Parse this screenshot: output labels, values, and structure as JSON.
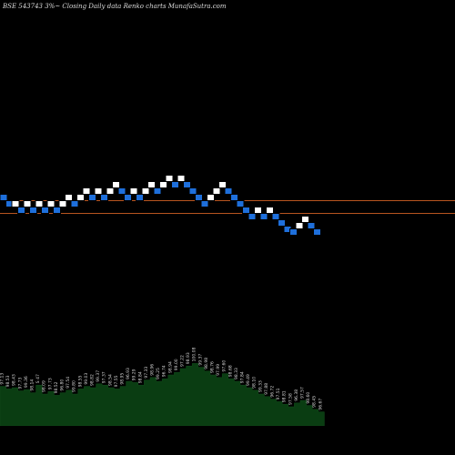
{
  "chart_data": {
    "type": "renko",
    "title": "BSE 543743 3%~ Closing Daily data Renko charts MunafaSutra.com",
    "colors": {
      "background": "#000000",
      "up_brick": "#ffffff",
      "down_brick": "#1e6fdb",
      "brick_border": "#000000",
      "reference_line": "#b8551f",
      "volume_fill": "#0a3d12",
      "volume_label": "#d8d8d8"
    },
    "reference_lines": [
      220.5,
      234.5
    ],
    "bricks": [
      {
        "i": 0,
        "level": 217,
        "dir": "down"
      },
      {
        "i": 1,
        "level": 224,
        "dir": "down"
      },
      {
        "i": 2,
        "level": 224,
        "dir": "up"
      },
      {
        "i": 3,
        "level": 231,
        "dir": "down"
      },
      {
        "i": 4,
        "level": 224,
        "dir": "up"
      },
      {
        "i": 5,
        "level": 231,
        "dir": "down"
      },
      {
        "i": 6,
        "level": 224,
        "dir": "up"
      },
      {
        "i": 7,
        "level": 231,
        "dir": "down"
      },
      {
        "i": 8,
        "level": 224,
        "dir": "up"
      },
      {
        "i": 9,
        "level": 231,
        "dir": "down"
      },
      {
        "i": 10,
        "level": 224,
        "dir": "up"
      },
      {
        "i": 11,
        "level": 217,
        "dir": "up"
      },
      {
        "i": 12,
        "level": 224,
        "dir": "down"
      },
      {
        "i": 13,
        "level": 217,
        "dir": "up"
      },
      {
        "i": 14,
        "level": 210,
        "dir": "up"
      },
      {
        "i": 15,
        "level": 217,
        "dir": "down"
      },
      {
        "i": 16,
        "level": 210,
        "dir": "up"
      },
      {
        "i": 17,
        "level": 217,
        "dir": "down"
      },
      {
        "i": 18,
        "level": 210,
        "dir": "up"
      },
      {
        "i": 19,
        "level": 203,
        "dir": "up"
      },
      {
        "i": 20,
        "level": 210,
        "dir": "down"
      },
      {
        "i": 21,
        "level": 217,
        "dir": "down"
      },
      {
        "i": 22,
        "level": 210,
        "dir": "up"
      },
      {
        "i": 23,
        "level": 217,
        "dir": "down"
      },
      {
        "i": 24,
        "level": 210,
        "dir": "up"
      },
      {
        "i": 25,
        "level": 203,
        "dir": "up"
      },
      {
        "i": 26,
        "level": 210,
        "dir": "down"
      },
      {
        "i": 27,
        "level": 203,
        "dir": "up"
      },
      {
        "i": 28,
        "level": 196,
        "dir": "up"
      },
      {
        "i": 29,
        "level": 203,
        "dir": "down"
      },
      {
        "i": 30,
        "level": 196,
        "dir": "up"
      },
      {
        "i": 31,
        "level": 203,
        "dir": "down"
      },
      {
        "i": 32,
        "level": 210,
        "dir": "down"
      },
      {
        "i": 33,
        "level": 217,
        "dir": "down"
      },
      {
        "i": 34,
        "level": 224,
        "dir": "down"
      },
      {
        "i": 35,
        "level": 217,
        "dir": "up"
      },
      {
        "i": 36,
        "level": 210,
        "dir": "up"
      },
      {
        "i": 37,
        "level": 203,
        "dir": "up"
      },
      {
        "i": 38,
        "level": 210,
        "dir": "down"
      },
      {
        "i": 39,
        "level": 217,
        "dir": "down"
      },
      {
        "i": 40,
        "level": 224,
        "dir": "down"
      },
      {
        "i": 41,
        "level": 231,
        "dir": "down"
      },
      {
        "i": 42,
        "level": 238,
        "dir": "down"
      },
      {
        "i": 43,
        "level": 231,
        "dir": "up"
      },
      {
        "i": 44,
        "level": 238,
        "dir": "down"
      },
      {
        "i": 45,
        "level": 231,
        "dir": "up"
      },
      {
        "i": 46,
        "level": 238,
        "dir": "down"
      },
      {
        "i": 47,
        "level": 245,
        "dir": "down"
      },
      {
        "i": 48,
        "level": 252,
        "dir": "down"
      },
      {
        "i": 49,
        "level": 255,
        "dir": "down"
      },
      {
        "i": 50,
        "level": 248,
        "dir": "up"
      },
      {
        "i": 51,
        "level": 241,
        "dir": "up"
      },
      {
        "i": 52,
        "level": 248,
        "dir": "down"
      },
      {
        "i": 53,
        "level": 255,
        "dir": "down"
      }
    ],
    "volume": [
      {
        "v": 62,
        "label": "97.13"
      },
      {
        "v": 58,
        "label": "98.53"
      },
      {
        "v": 60,
        "label": "98.43"
      },
      {
        "v": 55,
        "label": "97.73"
      },
      {
        "v": 57,
        "label": "99.36"
      },
      {
        "v": 52,
        "label": "98.14"
      },
      {
        "v": 64,
        "label": "S 47"
      },
      {
        "v": 50,
        "label": "98.09"
      },
      {
        "v": 54,
        "label": "97.73"
      },
      {
        "v": 48,
        "label": "98.52"
      },
      {
        "v": 52,
        "label": "96.80"
      },
      {
        "v": 56,
        "label": "97.54"
      },
      {
        "v": 50,
        "label": "99.80"
      },
      {
        "v": 58,
        "label": "98.55"
      },
      {
        "v": 62,
        "label": "99.03"
      },
      {
        "v": 60,
        "label": "98.82"
      },
      {
        "v": 66,
        "label": "99.37"
      },
      {
        "v": 64,
        "label": "97.37"
      },
      {
        "v": 60,
        "label": "98.54"
      },
      {
        "v": 58,
        "label": "97.55"
      },
      {
        "v": 62,
        "label": "98.95"
      },
      {
        "v": 70,
        "label": "96.93"
      },
      {
        "v": 68,
        "label": "99.29"
      },
      {
        "v": 64,
        "label": "98.84"
      },
      {
        "v": 72,
        "label": "97.33"
      },
      {
        "v": 76,
        "label": "98.96"
      },
      {
        "v": 70,
        "label": "99.25"
      },
      {
        "v": 74,
        "label": "96.74"
      },
      {
        "v": 80,
        "label": "98.94"
      },
      {
        "v": 84,
        "label": "99.00"
      },
      {
        "v": 90,
        "label": "97.22"
      },
      {
        "v": 94,
        "label": "98.93"
      },
      {
        "v": 98,
        "label": "100.08"
      },
      {
        "v": 92,
        "label": "99.37"
      },
      {
        "v": 86,
        "label": "98.98"
      },
      {
        "v": 80,
        "label": "98.76"
      },
      {
        "v": 76,
        "label": "97.99"
      },
      {
        "v": 82,
        "label": "97.60"
      },
      {
        "v": 74,
        "label": "98.68"
      },
      {
        "v": 70,
        "label": "98.33"
      },
      {
        "v": 64,
        "label": "97.84"
      },
      {
        "v": 60,
        "label": "99.49"
      },
      {
        "v": 56,
        "label": "98.10"
      },
      {
        "v": 50,
        "label": "99.33"
      },
      {
        "v": 46,
        "label": "97.88"
      },
      {
        "v": 42,
        "label": "96.72"
      },
      {
        "v": 38,
        "label": "97.51"
      },
      {
        "v": 34,
        "label": "98.81"
      },
      {
        "v": 30,
        "label": "97.58"
      },
      {
        "v": 36,
        "label": "96.38"
      },
      {
        "v": 40,
        "label": "97.57"
      },
      {
        "v": 32,
        "label": "98.60"
      },
      {
        "v": 26,
        "label": "98.45"
      },
      {
        "v": 22,
        "label": "96.67"
      }
    ]
  }
}
